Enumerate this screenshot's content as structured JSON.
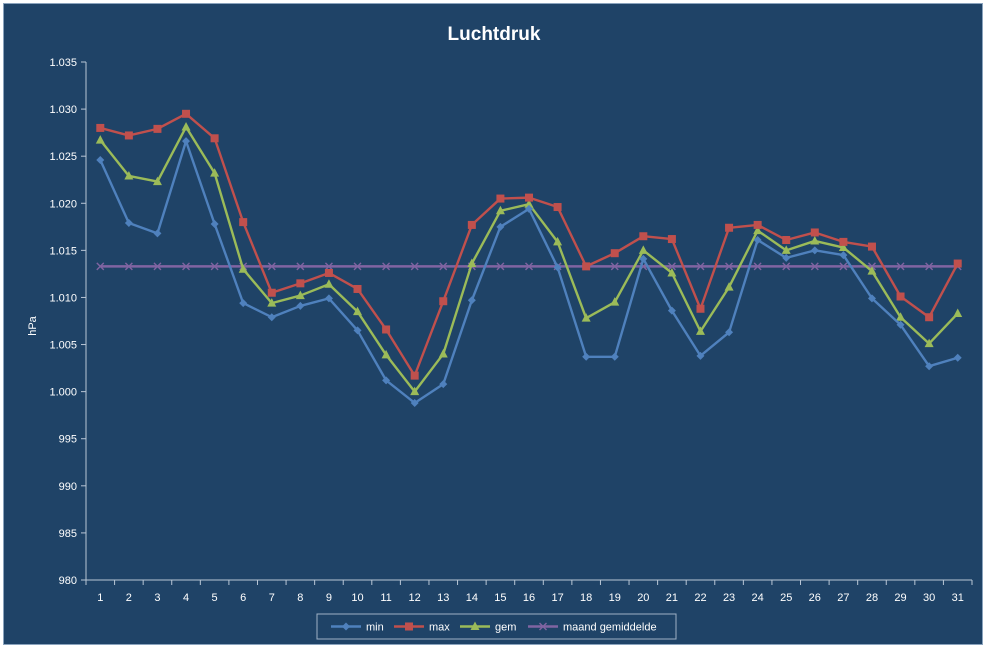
{
  "chart_data": {
    "type": "line",
    "title": "Luchtdruk",
    "xlabel": "",
    "ylabel": "hPa",
    "ylim": [
      980,
      1035
    ],
    "y_ticks": [
      980,
      985,
      990,
      995,
      1000,
      1005,
      1010,
      1015,
      1020,
      1025,
      1030,
      1035
    ],
    "y_tick_labels": [
      "980",
      "985",
      "990",
      "995",
      "1.000",
      "1.005",
      "1.010",
      "1.015",
      "1.020",
      "1.025",
      "1.030",
      "1.035"
    ],
    "categories": [
      "1",
      "2",
      "3",
      "4",
      "5",
      "6",
      "7",
      "8",
      "9",
      "10",
      "11",
      "12",
      "13",
      "14",
      "15",
      "16",
      "17",
      "18",
      "19",
      "20",
      "21",
      "22",
      "23",
      "24",
      "25",
      "26",
      "27",
      "28",
      "29",
      "30",
      "31"
    ],
    "grid": false,
    "legend_position": "bottom",
    "series": [
      {
        "name": "min",
        "color": "#4f81bd",
        "marker": "diamond",
        "values": [
          1024.6,
          1017.9,
          1016.8,
          1026.6,
          1017.8,
          1009.4,
          1007.9,
          1009.1,
          1009.9,
          1006.5,
          1001.2,
          998.8,
          1000.8,
          1009.7,
          1017.5,
          1019.4,
          1013.2,
          1003.7,
          1003.7,
          1014.1,
          1008.6,
          1003.8,
          1006.3,
          1016.1,
          1014.2,
          1015.0,
          1014.5,
          1009.9,
          1007.1,
          1002.7,
          1003.6
        ]
      },
      {
        "name": "max",
        "color": "#c0504d",
        "marker": "square",
        "values": [
          1028.0,
          1027.2,
          1027.9,
          1029.5,
          1026.9,
          1018.0,
          1010.5,
          1011.5,
          1012.6,
          1010.9,
          1006.6,
          1001.7,
          1009.6,
          1017.7,
          1020.5,
          1020.6,
          1019.6,
          1013.3,
          1014.7,
          1016.5,
          1016.2,
          1008.8,
          1017.4,
          1017.7,
          1016.1,
          1016.9,
          1015.9,
          1015.4,
          1010.1,
          1007.9,
          1013.6
        ]
      },
      {
        "name": "gem",
        "color": "#9bbb59",
        "marker": "triangle",
        "values": [
          1026.7,
          1022.9,
          1022.3,
          1028.1,
          1023.2,
          1013.0,
          1009.4,
          1010.2,
          1011.4,
          1008.5,
          1003.9,
          1000.0,
          1004.0,
          1013.6,
          1019.2,
          1019.9,
          1015.9,
          1007.8,
          1009.5,
          1015.0,
          1012.6,
          1006.4,
          1011.1,
          1017.1,
          1015.0,
          1016.0,
          1015.3,
          1012.8,
          1007.9,
          1005.1,
          1008.3
        ]
      },
      {
        "name": "maand gemiddelde",
        "color": "#8064a2",
        "marker": "x",
        "values": [
          1013.3,
          1013.3,
          1013.3,
          1013.3,
          1013.3,
          1013.3,
          1013.3,
          1013.3,
          1013.3,
          1013.3,
          1013.3,
          1013.3,
          1013.3,
          1013.3,
          1013.3,
          1013.3,
          1013.3,
          1013.3,
          1013.3,
          1013.3,
          1013.3,
          1013.3,
          1013.3,
          1013.3,
          1013.3,
          1013.3,
          1013.3,
          1013.3,
          1013.3,
          1013.3,
          1013.3
        ]
      }
    ]
  }
}
